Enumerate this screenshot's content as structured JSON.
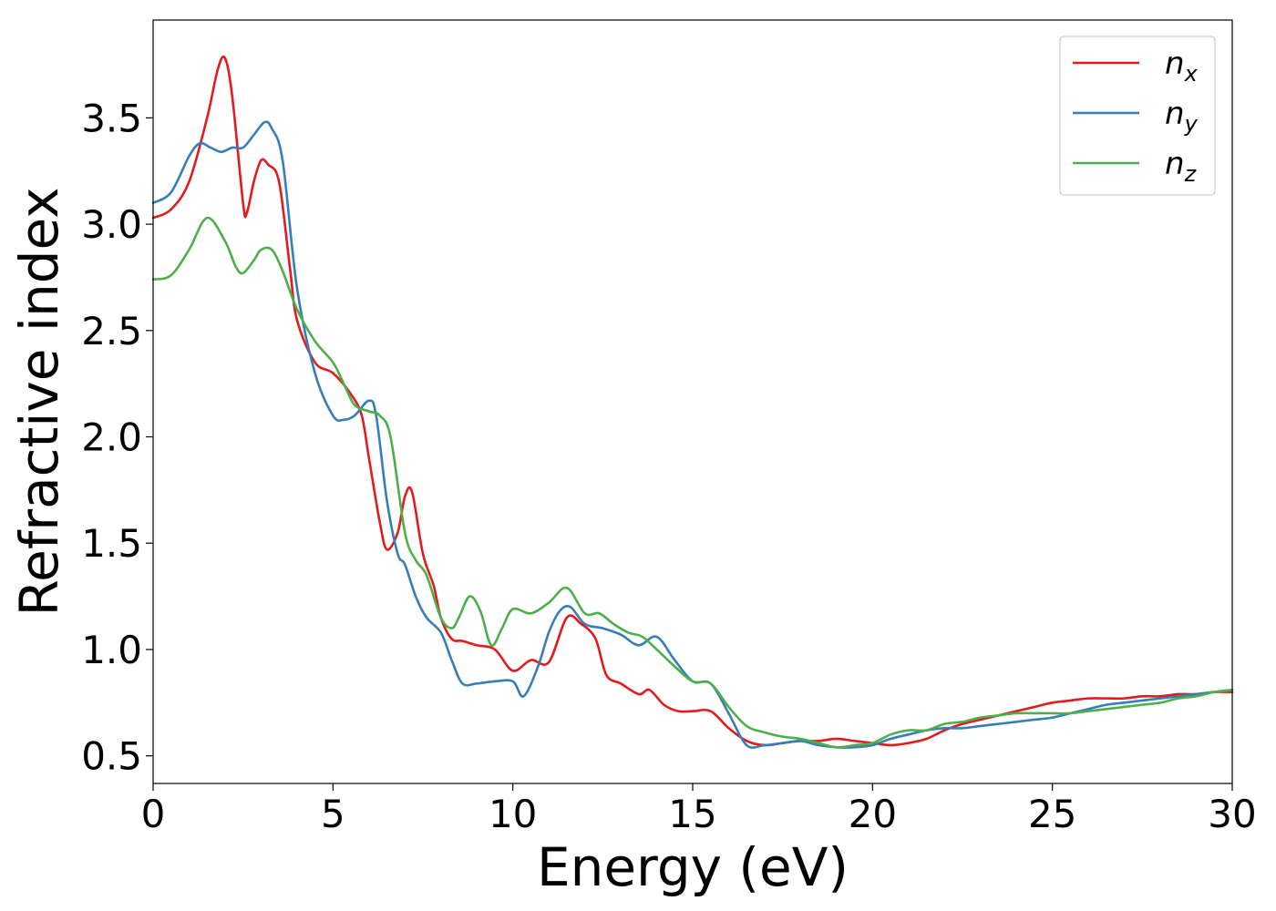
{
  "chart_data": {
    "type": "line",
    "xlabel": "Energy (eV)",
    "ylabel": "Refractive index",
    "xlim": [
      0,
      30
    ],
    "ylim": [
      0.37,
      3.96
    ],
    "xticks": [
      0,
      5,
      10,
      15,
      20,
      25,
      30
    ],
    "xtick_labels": [
      "0",
      "5",
      "10",
      "15",
      "20",
      "25",
      "30"
    ],
    "yticks": [
      0.5,
      1.0,
      1.5,
      2.0,
      2.5,
      3.0,
      3.5
    ],
    "ytick_labels": [
      "0.5",
      "1.0",
      "1.5",
      "2.0",
      "2.5",
      "3.0",
      "3.5"
    ],
    "grid": false,
    "legend_position": "top-right",
    "series": [
      {
        "name": "n_x",
        "label_base": "n",
        "label_sub": "x",
        "color": "#e41a1c",
        "x": [
          0,
          0.5,
          1.0,
          1.5,
          1.8,
          2.0,
          2.2,
          2.5,
          2.6,
          2.8,
          3.0,
          3.2,
          3.5,
          3.8,
          4.0,
          4.5,
          5.0,
          5.5,
          5.8,
          6.0,
          6.3,
          6.5,
          6.8,
          7.0,
          7.2,
          7.5,
          7.8,
          8.0,
          8.3,
          8.6,
          9.0,
          9.5,
          10.0,
          10.5,
          11.0,
          11.5,
          11.9,
          12.3,
          12.6,
          13.0,
          13.5,
          13.8,
          14.2,
          14.6,
          15.0,
          15.5,
          16.0,
          16.5,
          17.0,
          17.5,
          18.0,
          18.5,
          19.0,
          19.5,
          20.0,
          20.5,
          21.0,
          21.5,
          22.0,
          22.5,
          23.0,
          23.5,
          24.0,
          24.5,
          25.0,
          25.5,
          26.0,
          26.5,
          27.0,
          27.5,
          28.0,
          28.5,
          29.0,
          29.5,
          30.0
        ],
        "y": [
          3.03,
          3.07,
          3.2,
          3.5,
          3.73,
          3.78,
          3.6,
          3.1,
          3.05,
          3.2,
          3.3,
          3.28,
          3.2,
          2.8,
          2.55,
          2.35,
          2.3,
          2.2,
          2.1,
          1.9,
          1.6,
          1.47,
          1.55,
          1.72,
          1.74,
          1.45,
          1.3,
          1.15,
          1.05,
          1.04,
          1.02,
          1.0,
          0.9,
          0.95,
          0.94,
          1.15,
          1.12,
          1.05,
          0.88,
          0.84,
          0.79,
          0.81,
          0.74,
          0.71,
          0.71,
          0.71,
          0.63,
          0.57,
          0.55,
          0.56,
          0.57,
          0.57,
          0.58,
          0.57,
          0.56,
          0.55,
          0.56,
          0.58,
          0.62,
          0.65,
          0.67,
          0.69,
          0.71,
          0.73,
          0.75,
          0.76,
          0.77,
          0.77,
          0.77,
          0.78,
          0.78,
          0.79,
          0.79,
          0.8,
          0.8
        ]
      },
      {
        "name": "n_y",
        "label_base": "n",
        "label_sub": "y",
        "color": "#377eb8",
        "x": [
          0,
          0.5,
          1.0,
          1.3,
          1.6,
          1.9,
          2.2,
          2.5,
          2.8,
          3.1,
          3.3,
          3.6,
          4.0,
          4.5,
          5.0,
          5.3,
          5.6,
          6.0,
          6.2,
          6.5,
          6.8,
          7.0,
          7.3,
          7.6,
          8.0,
          8.3,
          8.6,
          9.0,
          9.5,
          10.0,
          10.3,
          10.7,
          11.0,
          11.3,
          11.6,
          12.0,
          12.5,
          13.0,
          13.5,
          14.0,
          14.5,
          15.0,
          15.5,
          16.0,
          16.5,
          17.0,
          17.5,
          18.0,
          18.5,
          19.0,
          19.5,
          20.0,
          20.5,
          21.0,
          21.5,
          22.0,
          22.5,
          23.0,
          23.5,
          24.0,
          24.5,
          25.0,
          25.5,
          26.0,
          26.5,
          27.0,
          27.5,
          28.0,
          28.5,
          29.0,
          29.5,
          30.0
        ],
        "y": [
          3.1,
          3.15,
          3.32,
          3.38,
          3.36,
          3.34,
          3.36,
          3.36,
          3.42,
          3.48,
          3.45,
          3.3,
          2.7,
          2.3,
          2.1,
          2.08,
          2.1,
          2.17,
          2.1,
          1.7,
          1.45,
          1.4,
          1.25,
          1.15,
          1.08,
          0.95,
          0.84,
          0.84,
          0.85,
          0.85,
          0.78,
          0.92,
          1.08,
          1.18,
          1.2,
          1.12,
          1.1,
          1.07,
          1.02,
          1.06,
          0.95,
          0.85,
          0.84,
          0.7,
          0.55,
          0.55,
          0.56,
          0.57,
          0.55,
          0.54,
          0.54,
          0.55,
          0.58,
          0.6,
          0.62,
          0.63,
          0.63,
          0.64,
          0.65,
          0.66,
          0.67,
          0.68,
          0.7,
          0.72,
          0.74,
          0.75,
          0.76,
          0.77,
          0.78,
          0.79,
          0.8,
          0.81
        ]
      },
      {
        "name": "n_z",
        "label_base": "n",
        "label_sub": "z",
        "color": "#4daf4a",
        "x": [
          0,
          0.5,
          1.0,
          1.5,
          2.0,
          2.3,
          2.5,
          2.8,
          3.0,
          3.3,
          3.6,
          4.0,
          4.5,
          5.0,
          5.3,
          5.6,
          6.0,
          6.3,
          6.6,
          7.0,
          7.3,
          7.6,
          8.0,
          8.3,
          8.5,
          8.8,
          9.1,
          9.4,
          9.7,
          10.0,
          10.5,
          11.0,
          11.5,
          12.0,
          12.4,
          12.8,
          13.2,
          13.6,
          14.0,
          14.5,
          15.0,
          15.5,
          16.0,
          16.5,
          17.0,
          17.5,
          18.0,
          18.5,
          19.0,
          19.5,
          20.0,
          20.5,
          21.0,
          21.5,
          22.0,
          22.5,
          23.0,
          23.5,
          24.0,
          24.5,
          25.0,
          25.5,
          26.0,
          26.5,
          27.0,
          27.5,
          28.0,
          28.5,
          29.0,
          29.5,
          30.0
        ],
        "y": [
          2.74,
          2.76,
          2.88,
          3.03,
          2.92,
          2.8,
          2.77,
          2.83,
          2.88,
          2.88,
          2.78,
          2.6,
          2.45,
          2.35,
          2.25,
          2.15,
          2.12,
          2.1,
          2.0,
          1.55,
          1.42,
          1.35,
          1.15,
          1.1,
          1.15,
          1.25,
          1.18,
          1.02,
          1.1,
          1.19,
          1.17,
          1.22,
          1.29,
          1.17,
          1.17,
          1.12,
          1.08,
          1.06,
          1.0,
          0.92,
          0.85,
          0.84,
          0.73,
          0.64,
          0.61,
          0.59,
          0.58,
          0.56,
          0.54,
          0.55,
          0.56,
          0.6,
          0.62,
          0.62,
          0.65,
          0.66,
          0.68,
          0.69,
          0.7,
          0.7,
          0.7,
          0.7,
          0.71,
          0.72,
          0.73,
          0.74,
          0.75,
          0.77,
          0.78,
          0.8,
          0.81
        ]
      }
    ]
  }
}
